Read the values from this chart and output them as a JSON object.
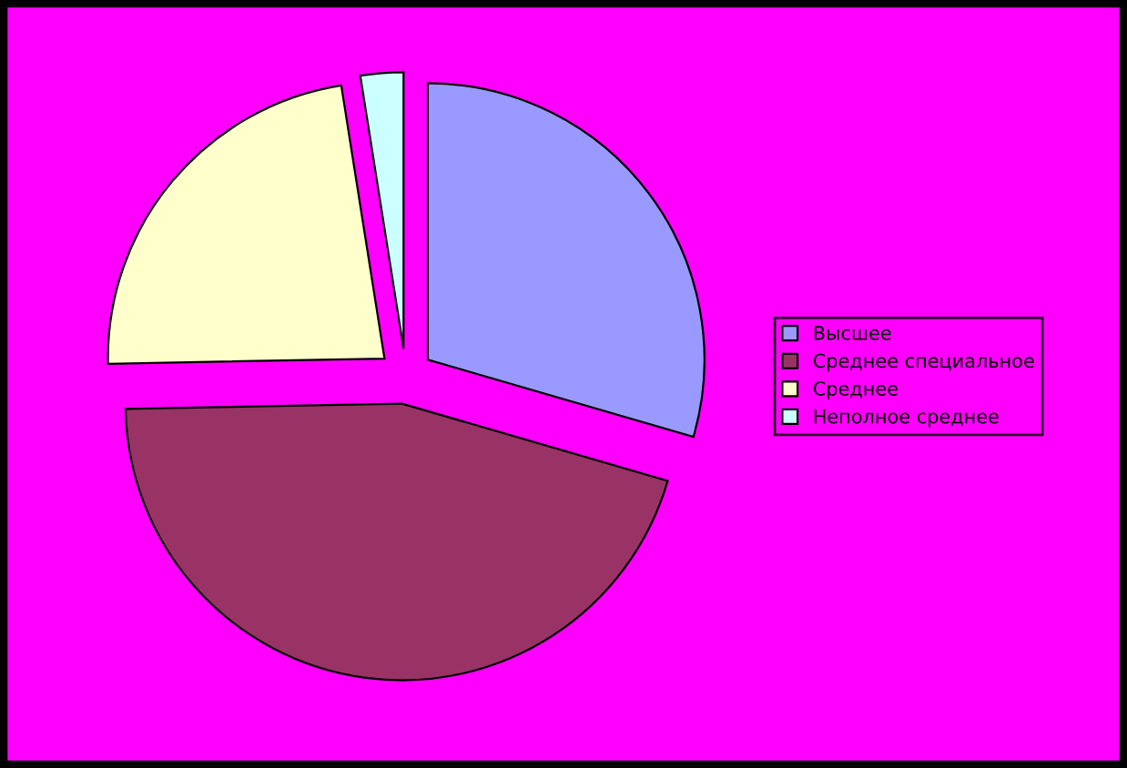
{
  "chart_data": {
    "type": "pie",
    "categories": [
      "Высшее",
      "Среднее специальное",
      "Среднее",
      "Неполное среднее"
    ],
    "values": [
      29.5,
      45.2,
      22.8,
      2.5
    ],
    "colors": [
      "#9999ff",
      "#993366",
      "#ffffcc",
      "#ccffff"
    ],
    "legend": "right"
  }
}
